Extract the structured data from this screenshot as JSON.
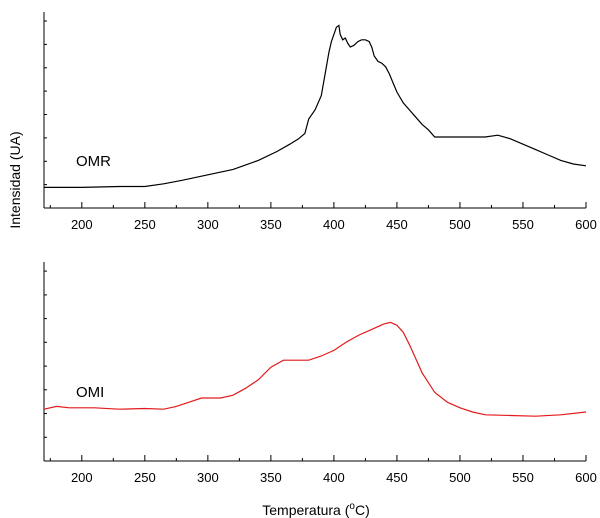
{
  "chart_data": [
    {
      "type": "line",
      "panel": "top",
      "xlim": [
        170,
        600
      ],
      "x_ticks": [
        200,
        250,
        300,
        350,
        400,
        450,
        500,
        550,
        600
      ],
      "ylim": [
        0,
        100
      ],
      "grid": false,
      "series": [
        {
          "name": "OMR",
          "color": "#000000",
          "points": [
            [
              170,
              7
            ],
            [
              200,
              7
            ],
            [
              230,
              7.5
            ],
            [
              250,
              7.5
            ],
            [
              265,
              9
            ],
            [
              280,
              11
            ],
            [
              300,
              14
            ],
            [
              320,
              17
            ],
            [
              340,
              22
            ],
            [
              355,
              27
            ],
            [
              365,
              31
            ],
            [
              372,
              34
            ],
            [
              377,
              37
            ],
            [
              380,
              45
            ],
            [
              385,
              50
            ],
            [
              390,
              58
            ],
            [
              393,
              70
            ],
            [
              396,
              82
            ],
            [
              398,
              88
            ],
            [
              400,
              92
            ],
            [
              402,
              96
            ],
            [
              404,
              97
            ],
            [
              405,
              92
            ],
            [
              407,
              89
            ],
            [
              409,
              90
            ],
            [
              411,
              87
            ],
            [
              413,
              85
            ],
            [
              416,
              86
            ],
            [
              419,
              88
            ],
            [
              422,
              89
            ],
            [
              425,
              89
            ],
            [
              428,
              88
            ],
            [
              430,
              85
            ],
            [
              432,
              80
            ],
            [
              435,
              77
            ],
            [
              438,
              76
            ],
            [
              441,
              74
            ],
            [
              444,
              70
            ],
            [
              447,
              65
            ],
            [
              450,
              60
            ],
            [
              455,
              54
            ],
            [
              460,
              50
            ],
            [
              465,
              46
            ],
            [
              470,
              42
            ],
            [
              475,
              39
            ],
            [
              480,
              35
            ],
            [
              490,
              35
            ],
            [
              500,
              35
            ],
            [
              510,
              35
            ],
            [
              520,
              35
            ],
            [
              530,
              36
            ],
            [
              540,
              34
            ],
            [
              550,
              31
            ],
            [
              560,
              28
            ],
            [
              570,
              25
            ],
            [
              580,
              22
            ],
            [
              590,
              20
            ],
            [
              600,
              19
            ]
          ]
        }
      ],
      "annotation": "OMR"
    },
    {
      "type": "line",
      "panel": "bottom",
      "xlim": [
        170,
        600
      ],
      "x_ticks": [
        200,
        250,
        300,
        350,
        400,
        450,
        500,
        550,
        600
      ],
      "ylim": [
        0,
        100
      ],
      "grid": false,
      "series": [
        {
          "name": "OMI",
          "color": "#e31a1c",
          "points": [
            [
              170,
              22
            ],
            [
              180,
              24
            ],
            [
              190,
              23
            ],
            [
              210,
              23
            ],
            [
              230,
              22
            ],
            [
              250,
              22.5
            ],
            [
              265,
              22
            ],
            [
              275,
              24
            ],
            [
              285,
              27
            ],
            [
              295,
              30
            ],
            [
              310,
              30
            ],
            [
              320,
              32
            ],
            [
              330,
              37
            ],
            [
              340,
              43
            ],
            [
              350,
              52
            ],
            [
              360,
              57
            ],
            [
              370,
              57
            ],
            [
              380,
              57
            ],
            [
              390,
              60
            ],
            [
              400,
              64
            ],
            [
              410,
              70
            ],
            [
              420,
              75
            ],
            [
              430,
              79
            ],
            [
              440,
              83
            ],
            [
              445,
              84
            ],
            [
              450,
              82
            ],
            [
              455,
              77
            ],
            [
              460,
              68
            ],
            [
              465,
              58
            ],
            [
              470,
              48
            ],
            [
              480,
              34
            ],
            [
              490,
              27
            ],
            [
              500,
              23
            ],
            [
              510,
              20
            ],
            [
              520,
              18
            ],
            [
              540,
              17.5
            ],
            [
              560,
              17
            ],
            [
              580,
              18
            ],
            [
              600,
              20
            ]
          ]
        }
      ],
      "annotation": "OMI"
    }
  ],
  "labels": {
    "ylabel": "Intensidad (UA)",
    "xlabel_main": "Temperatura (",
    "xlabel_sup": "o",
    "xlabel_tail": "C)",
    "top_series_label": "OMR",
    "bottom_series_label": "OMI"
  }
}
